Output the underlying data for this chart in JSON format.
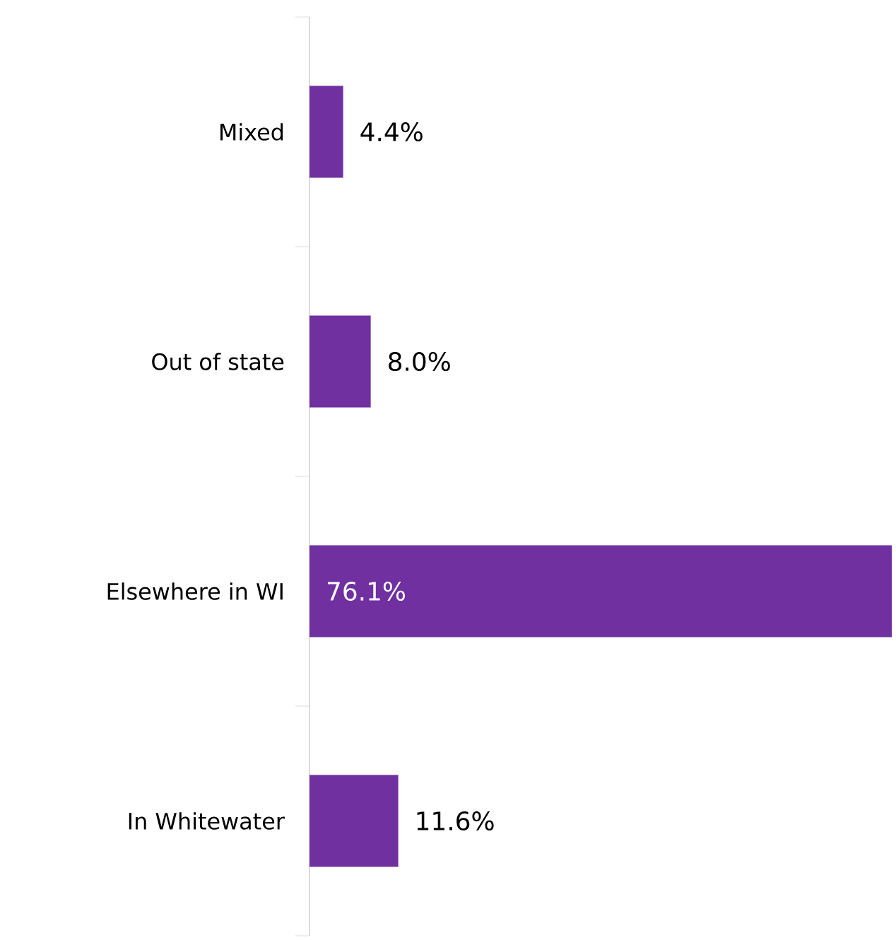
{
  "chart_data": {
    "type": "bar",
    "orientation": "horizontal",
    "categories": [
      "Mixed",
      "Out of state",
      "Elsewhere in WI",
      "In Whitewater"
    ],
    "values": [
      4.4,
      8.0,
      76.1,
      11.6
    ],
    "value_labels": [
      "4.4%",
      "8.0%",
      "76.1%",
      "11.6%"
    ],
    "color": "#7030a0"
  }
}
